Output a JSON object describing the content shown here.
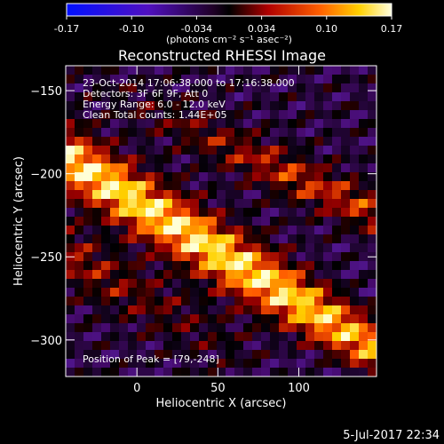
{
  "colorbar": {
    "tick_labels": [
      "-0.17",
      "-0.10",
      "-0.034",
      "0.034",
      "0.10",
      "0.17"
    ],
    "range": [
      -0.17,
      0.17
    ],
    "unit_label": "(photons cm⁻² s⁻¹ asec⁻²)"
  },
  "title": "Reconstructed RHESSI Image",
  "overlay": {
    "time": "23-Oct-2014 17:06:38.000 to 17:16:38.000",
    "detectors": "Detectors: 3F 6F 9F, Att 0",
    "energy": "Energy Range: 6.0 - 12.0 keV",
    "method": "Clean    Total counts: 1.44E+05",
    "peak": "Position of Peak = [79,-248]"
  },
  "timestamp": "5-Jul-2017 22:34",
  "chart_data": {
    "type": "heatmap",
    "title": "Reconstructed RHESSI Image",
    "xlabel": "Heliocentric X (arcsec)",
    "ylabel": "Heliocentric Y (arcsec)",
    "xlim": [
      -44,
      148
    ],
    "ylim": [
      -322,
      -135
    ],
    "x_ticks": [
      0,
      50,
      100
    ],
    "y_ticks": [
      -150,
      -200,
      -250,
      -300
    ],
    "x_tick_labels": [
      "0",
      "50",
      "100"
    ],
    "y_tick_labels": [
      "−150",
      "−200",
      "−250",
      "−300"
    ],
    "peak_position": [
      79,
      -248
    ],
    "colormap": "hot-blue",
    "value_range": [
      -0.17,
      0.17
    ],
    "grid": false
  }
}
